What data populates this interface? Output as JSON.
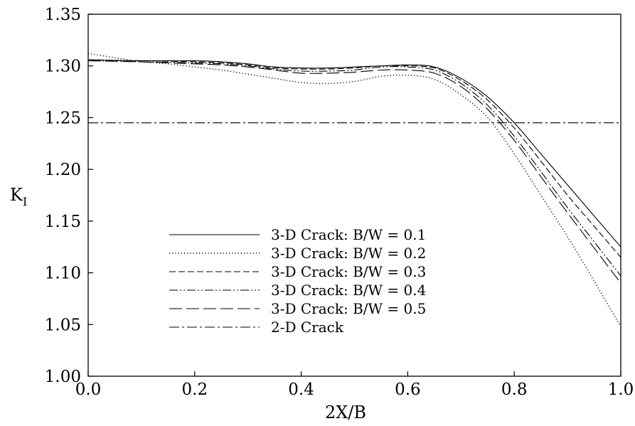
{
  "chart_data": {
    "type": "line",
    "xlabel": "2X/B",
    "ylabel_main": "K",
    "ylabel_sub": "I",
    "xlim": [
      0.0,
      1.0
    ],
    "ylim": [
      1.0,
      1.35
    ],
    "xticks": [
      "0.0",
      "0.2",
      "0.4",
      "0.6",
      "0.8",
      "1.0"
    ],
    "yticks": [
      "1.00",
      "1.05",
      "1.10",
      "1.15",
      "1.20",
      "1.25",
      "1.30",
      "1.35"
    ],
    "grid": false,
    "legend_position": "lower-left-center",
    "series": [
      {
        "name": "3-D Crack: B/W = 0.1",
        "dash": "solid",
        "x": [
          0.0,
          0.1,
          0.2,
          0.25,
          0.3,
          0.35,
          0.4,
          0.45,
          0.5,
          0.55,
          0.6,
          0.65,
          0.7,
          0.75,
          0.8,
          0.85,
          0.9,
          0.95,
          1.0
        ],
        "y": [
          1.306,
          1.305,
          1.305,
          1.304,
          1.302,
          1.299,
          1.298,
          1.298,
          1.299,
          1.3,
          1.301,
          1.299,
          1.288,
          1.27,
          1.245,
          1.215,
          1.185,
          1.155,
          1.125
        ]
      },
      {
        "name": "3-D Crack: B/W = 0.2",
        "dash": "dotted",
        "x": [
          0.0,
          0.05,
          0.1,
          0.15,
          0.2,
          0.25,
          0.3,
          0.35,
          0.4,
          0.45,
          0.5,
          0.55,
          0.6,
          0.65,
          0.7,
          0.75,
          0.8,
          0.85,
          0.9,
          0.95,
          1.0
        ],
        "y": [
          1.312,
          1.308,
          1.304,
          1.302,
          1.299,
          1.296,
          1.292,
          1.288,
          1.284,
          1.283,
          1.285,
          1.29,
          1.291,
          1.287,
          1.272,
          1.25,
          1.215,
          1.175,
          1.135,
          1.092,
          1.048
        ]
      },
      {
        "name": "3-D Crack: B/W = 0.3",
        "dash": "dashed",
        "x": [
          0.0,
          0.1,
          0.2,
          0.25,
          0.3,
          0.35,
          0.4,
          0.45,
          0.5,
          0.55,
          0.6,
          0.65,
          0.7,
          0.75,
          0.8,
          0.85,
          0.9,
          0.95,
          1.0
        ],
        "y": [
          1.306,
          1.305,
          1.304,
          1.303,
          1.301,
          1.298,
          1.297,
          1.297,
          1.298,
          1.3,
          1.3,
          1.298,
          1.286,
          1.267,
          1.24,
          1.208,
          1.175,
          1.145,
          1.115
        ]
      },
      {
        "name": "3-D Crack: B/W = 0.4",
        "dash": "dashdotdot",
        "x": [
          0.0,
          0.1,
          0.2,
          0.25,
          0.3,
          0.35,
          0.4,
          0.45,
          0.5,
          0.55,
          0.6,
          0.65,
          0.7,
          0.75,
          0.8,
          0.85,
          0.9,
          0.95,
          1.0
        ],
        "y": [
          1.305,
          1.304,
          1.303,
          1.302,
          1.3,
          1.297,
          1.295,
          1.295,
          1.296,
          1.299,
          1.299,
          1.296,
          1.283,
          1.262,
          1.232,
          1.198,
          1.163,
          1.13,
          1.097
        ]
      },
      {
        "name": "3-D Crack: B/W = 0.5",
        "dash": "longdash",
        "x": [
          0.0,
          0.1,
          0.2,
          0.25,
          0.3,
          0.35,
          0.4,
          0.45,
          0.5,
          0.55,
          0.6,
          0.65,
          0.7,
          0.75,
          0.8,
          0.85,
          0.9,
          0.95,
          1.0
        ],
        "y": [
          1.305,
          1.304,
          1.302,
          1.301,
          1.299,
          1.296,
          1.293,
          1.293,
          1.294,
          1.296,
          1.296,
          1.293,
          1.28,
          1.258,
          1.228,
          1.193,
          1.158,
          1.124,
          1.09
        ]
      },
      {
        "name": "2-D Crack",
        "dash": "dashdot",
        "x": [
          0.0,
          1.0
        ],
        "y": [
          1.245,
          1.245
        ]
      }
    ]
  }
}
